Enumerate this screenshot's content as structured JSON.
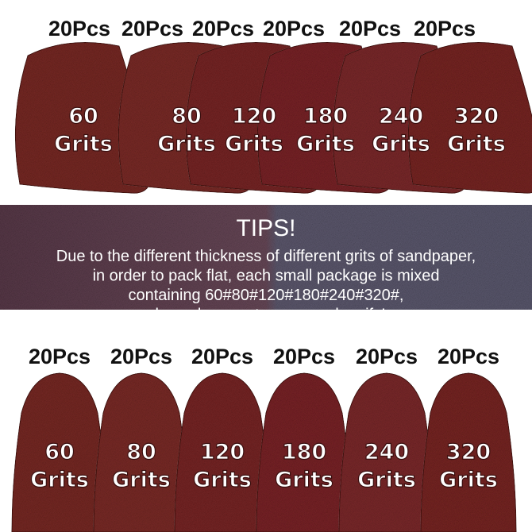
{
  "top_row": [
    {
      "count": "20Pcs",
      "grit": "60",
      "unit": "Grits"
    },
    {
      "count": "20Pcs",
      "grit": "80",
      "unit": "Grits"
    },
    {
      "count": "20Pcs",
      "grit": "120",
      "unit": "Grits"
    },
    {
      "count": "20Pcs",
      "grit": "180",
      "unit": "Grits"
    },
    {
      "count": "20Pcs",
      "grit": "240",
      "unit": "Grits"
    },
    {
      "count": "20Pcs",
      "grit": "320",
      "unit": "Grits"
    }
  ],
  "tips": {
    "title": "TIPS!",
    "lines": [
      "Due to the different thickness of different grits of sandpaper,",
      "in order to pack flat, each small package is mixed",
      "containing 60#80#120#180#240#320#,",
      "please be sure to open and verify!"
    ]
  },
  "bottom_row": [
    {
      "count": "20Pcs",
      "grit": "60",
      "unit": "Grits"
    },
    {
      "count": "20Pcs",
      "grit": "80",
      "unit": "Grits"
    },
    {
      "count": "20Pcs",
      "grit": "120",
      "unit": "Grits"
    },
    {
      "count": "20Pcs",
      "grit": "180",
      "unit": "Grits"
    },
    {
      "count": "20Pcs",
      "grit": "240",
      "unit": "Grits"
    },
    {
      "count": "20Pcs",
      "grit": "320",
      "unit": "Grits"
    }
  ]
}
